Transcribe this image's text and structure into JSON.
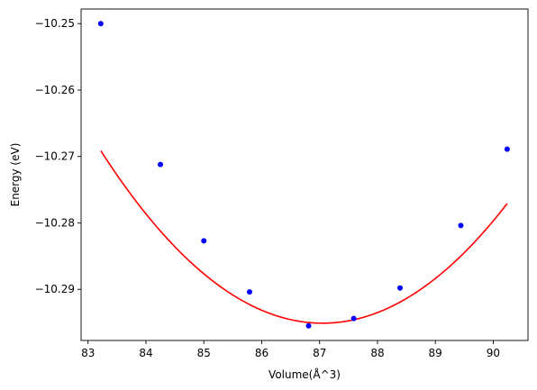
{
  "chart_data": {
    "type": "scatter",
    "title": "",
    "xlabel": "Volume(Å^3)",
    "ylabel": "Energy (eV)",
    "xlim": [
      82.88,
      90.6
    ],
    "ylim": [
      -10.2977,
      -10.2478
    ],
    "xticks": [
      83,
      84,
      85,
      86,
      87,
      88,
      89,
      90
    ],
    "xtick_labels": [
      "83",
      "84",
      "85",
      "86",
      "87",
      "88",
      "89",
      "90"
    ],
    "yticks": [
      -10.25,
      -10.26,
      -10.27,
      -10.28,
      -10.29
    ],
    "ytick_labels": [
      "−10.25",
      "−10.26",
      "−10.27",
      "−10.28",
      "−10.29"
    ],
    "grid": false,
    "series": [
      {
        "kind": "points",
        "color": "#0000ff",
        "x": [
          83.22,
          84.25,
          85.0,
          85.79,
          86.81,
          87.59,
          88.39,
          89.44,
          90.24
        ],
        "y": [
          -10.25,
          -10.2712,
          -10.2827,
          -10.2904,
          -10.2955,
          -10.2944,
          -10.2898,
          -10.2804,
          -10.2689
        ]
      },
      {
        "kind": "fit-line",
        "color": "#ff0000",
        "fit": {
          "x_min": 83.22,
          "x_max": 90.24,
          "quadratic": [
            0.00177,
            87.05,
            -10.2951
          ]
        }
      }
    ]
  }
}
